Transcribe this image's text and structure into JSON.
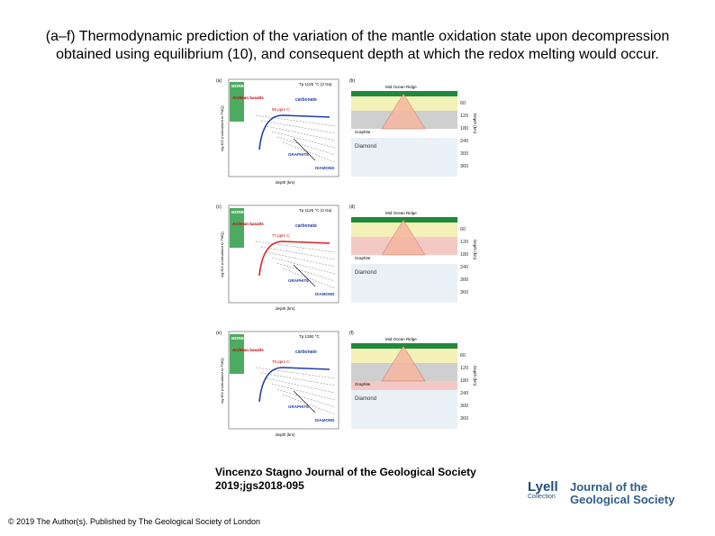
{
  "title": "(a–f) Thermodynamic prediction of the variation of the mantle oxidation state upon decompression obtained using equilibrium (10), and consequent depth at which the redox melting would occur.",
  "citation": {
    "line1": "Vincenzo Stagno Journal of the Geological Society",
    "line2": "2019;jgs2018-095"
  },
  "copyright": "© 2019 The Author(s). Published by The Geological Society of London",
  "logo": {
    "lyell": "Lyell",
    "lyell_sub": "Collection",
    "journal_line1": "Journal of the",
    "journal_line2": "Geological Society"
  },
  "figure": {
    "panels": [
      {
        "label": "(a)",
        "temp": "Tp 1125 °C (3 Ga)",
        "ppm": "55 ppm C",
        "stroke": "#1f3fa8"
      },
      {
        "label": "(c)",
        "temp": "Tp 1125 °C (3 Ga)",
        "ppm": "77 ppm C",
        "stroke": "#e0201e"
      },
      {
        "label": "(e)",
        "temp": "Tp 1350 °C",
        "ppm": "70 ppm C",
        "stroke": "#1f3fa8"
      }
    ],
    "right_labels": [
      "(b)",
      "(d)",
      "(f)"
    ],
    "common": {
      "morb": "MORB",
      "archean": "Archean basalts",
      "carbonate": "carbonate",
      "graphite": "GRAPHITE",
      "diamond": "DIAMOND",
      "ridge": "Mid Ocean Ridge",
      "diamond_label": "Diamond",
      "graphite_label": "Graphite",
      "xlabel": "depth (km)",
      "ylabel": "log fO2 (normalised to FMQ)",
      "depth_ticks": [
        "60",
        "120",
        "180",
        "240",
        "300",
        "360"
      ],
      "depth_axis": "Depth (km)"
    },
    "colors": {
      "morb_green": "#2e9b45",
      "ocean_green": "#1f8a3a",
      "band_yellow": "#f3f0b8",
      "band_pink": "#f3c9c6",
      "band_grey": "#cfcfcf",
      "band_blue": "#dbe7f2",
      "sky": "#ffffff"
    }
  }
}
